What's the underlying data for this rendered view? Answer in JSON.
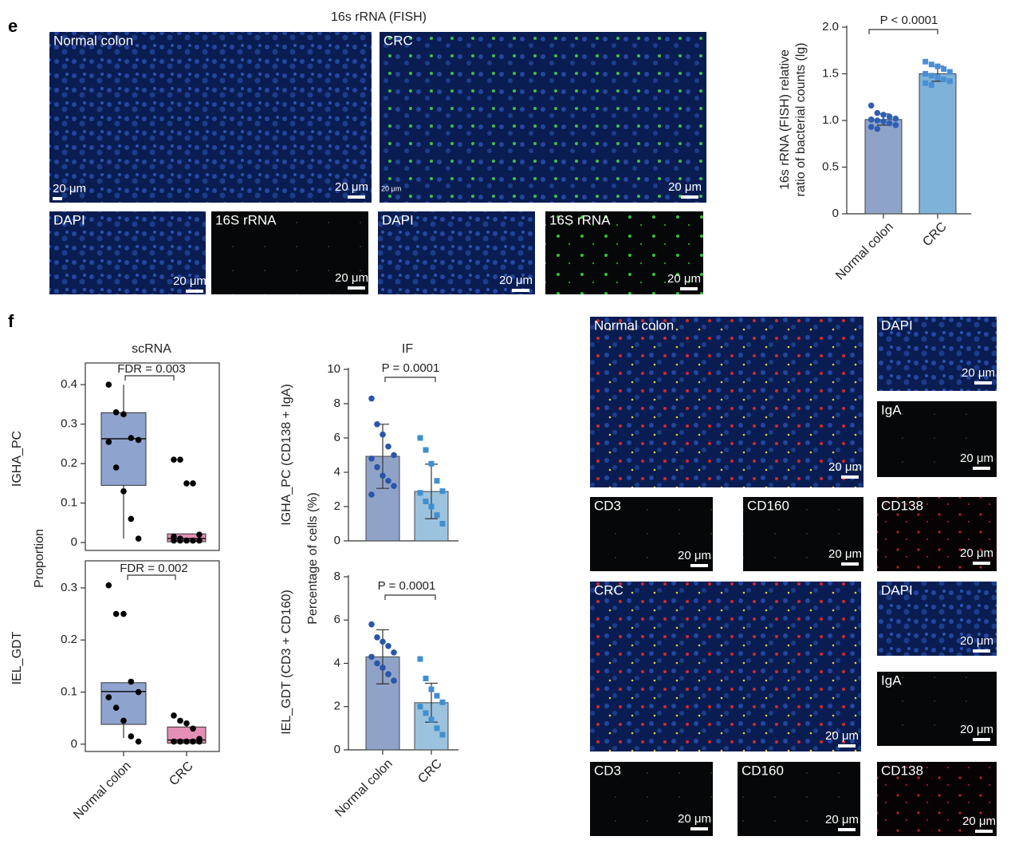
{
  "panel_labels": [
    "e",
    "f"
  ],
  "fish_title": "16s rRNA (FISH)",
  "images": [
    {
      "label": "Normal colon",
      "scales": [
        "20 μm",
        "20 μm"
      ]
    },
    {
      "label": "CRC",
      "scales": [
        "20 μm",
        "20 μm"
      ]
    },
    {
      "label": "DAPI",
      "scales": [
        "20 μm"
      ]
    },
    {
      "label": "16S rRNA",
      "scales": [
        "20 μm"
      ]
    },
    {
      "label": "DAPI",
      "scales": [
        "20 μm"
      ]
    },
    {
      "label": "16S rRNA",
      "scales": [
        "20 μm"
      ]
    },
    {
      "label": "Normal colon",
      "scales": [
        "20 μm"
      ]
    },
    {
      "label": "DAPI",
      "scales": [
        "20 μm"
      ]
    },
    {
      "label": "IgA",
      "scales": [
        "20 μm"
      ]
    },
    {
      "label": "CD3",
      "scales": [
        "20 μm"
      ]
    },
    {
      "label": "CD160",
      "scales": [
        "20 μm"
      ]
    },
    {
      "label": "CD138",
      "scales": [
        "20 μm"
      ]
    },
    {
      "label": "CRC",
      "scales": [
        "20 μm"
      ]
    },
    {
      "label": "DAPI",
      "scales": [
        "20 μm"
      ]
    },
    {
      "label": "IgA",
      "scales": [
        "20 μm"
      ]
    },
    {
      "label": "CD3",
      "scales": [
        "20 μm"
      ]
    },
    {
      "label": "CD160",
      "scales": [
        "20 μm"
      ]
    },
    {
      "label": "CD138",
      "scales": [
        "20 μm"
      ]
    }
  ],
  "chart_data": [
    {
      "type": "bar",
      "ylabel": [
        "16s rRNA (FISH) relative",
        "ratio of bacterial counts (lg)"
      ],
      "categories": [
        "Normal colon",
        "CRC"
      ],
      "values": [
        1.01,
        1.5
      ],
      "errors": [
        0.06,
        0.08
      ],
      "colors": [
        "#8fa3c8",
        "#7fb2d9"
      ],
      "point_colors": [
        "#2f5fb3",
        "#4a8fd6"
      ],
      "point_shapes": [
        "circle",
        "square"
      ],
      "points": [
        [
          1.16,
          1.08,
          1.06,
          1.04,
          1.02,
          1.01,
          1.0,
          0.99,
          0.97,
          0.95,
          0.93,
          0.91
        ],
        [
          1.63,
          1.6,
          1.58,
          1.55,
          1.52,
          1.5,
          1.48,
          1.46,
          1.44,
          1.42,
          1.4,
          1.38
        ]
      ],
      "annotation": "P < 0.0001",
      "ylim": [
        0,
        2
      ],
      "yticks": [
        0,
        0.5,
        {
          "value": 1,
          "label": "1.0"
        },
        1.5,
        {
          "value": 2,
          "label": "2.0"
        }
      ]
    },
    {
      "type": "box",
      "title": "scRNA",
      "ylabel": "Proportion",
      "row_label": "IGHA_PC",
      "boxes": [
        {
          "whislo": 0.01,
          "q1": 0.145,
          "med": 0.263,
          "q3": 0.329,
          "whishi": 0.4
        },
        {
          "whislo": 0,
          "q1": 0.002,
          "med": 0.01,
          "q3": 0.022,
          "whishi": 0.022
        }
      ],
      "colors": [
        "#8fa3cf",
        "#e48fb6"
      ],
      "points": [
        [
          0.4,
          0.33,
          0.325,
          0.265,
          0.26,
          0.255,
          0.19,
          0.13,
          0.06,
          0.01
        ],
        [
          0.21,
          0.21,
          0.15,
          0.15,
          0.02,
          0.015,
          0.01,
          0.005,
          0.005,
          0.005,
          0.005,
          0.005
        ]
      ],
      "annotation": "FDR = 0.003",
      "ylim": [
        -0.02,
        0.455
      ],
      "yticks": [
        0,
        0.1,
        0.2,
        0.3,
        0.4
      ]
    },
    {
      "type": "box",
      "row_label": "IEL_GDT",
      "categories": [
        "Normal colon",
        "CRC"
      ],
      "boxes": [
        {
          "whislo": 0.012,
          "q1": 0.038,
          "med": 0.101,
          "q3": 0.118,
          "whishi": 0.118
        },
        {
          "whislo": 0,
          "q1": 0.002,
          "med": 0.008,
          "q3": 0.033,
          "whishi": 0.035
        }
      ],
      "colors": [
        "#8fa3cf",
        "#e48fb6"
      ],
      "points": [
        [
          0.305,
          0.25,
          0.25,
          0.12,
          0.1,
          0.09,
          0.07,
          0.045,
          0.015,
          0.005
        ],
        [
          0.055,
          0.045,
          0.04,
          0.03,
          0.01,
          0.005,
          0.005,
          0.005,
          0.005,
          0.005
        ]
      ],
      "annotation": "FDR = 0.002",
      "ylim": [
        -0.014,
        0.352
      ],
      "yticks": [
        0,
        0.1,
        0.2,
        0.3
      ]
    },
    {
      "type": "bar",
      "title": "IF",
      "ylabel": "Percentage of cells (%)",
      "row_label": "IGHA_PC (CD138 + IgA)",
      "values": [
        4.93,
        2.88
      ],
      "errors": [
        1.87,
        1.59
      ],
      "colors": [
        "#8fa3c8",
        "#9cc3de"
      ],
      "point_colors": [
        "#2a55a8",
        "#3f8fd0"
      ],
      "point_shapes": [
        "circle",
        "square"
      ],
      "points": [
        [
          8.3,
          6.8,
          6.2,
          5.5,
          5.0,
          4.8,
          4.3,
          3.8,
          3.5,
          3.2,
          2.7
        ],
        [
          6.0,
          5.3,
          4.5,
          3.5,
          2.9,
          2.8,
          2.3,
          2.0,
          1.5,
          1.0
        ]
      ],
      "annotation": "P = 0.0001",
      "ylim": [
        0,
        10
      ],
      "yticks": [
        0,
        2,
        4,
        6,
        8,
        10
      ]
    },
    {
      "type": "bar",
      "row_label": "IEL_GDT (CD3 + CD160)",
      "categories": [
        "Normal colon",
        "CRC"
      ],
      "values": [
        4.3,
        2.18
      ],
      "errors": [
        1.25,
        0.9
      ],
      "colors": [
        "#8fa3c8",
        "#9cc3de"
      ],
      "point_colors": [
        "#2a55a8",
        "#3f8fd0"
      ],
      "point_shapes": [
        "circle",
        "square"
      ],
      "points": [
        [
          5.8,
          5.2,
          5.0,
          4.8,
          4.5,
          4.3,
          4.0,
          3.8,
          3.5,
          3.2
        ],
        [
          4.2,
          3.3,
          2.8,
          2.5,
          2.2,
          2.0,
          1.7,
          1.4,
          1.0,
          0.7
        ]
      ],
      "annotation": "P = 0.0001",
      "ylim": [
        0,
        8
      ],
      "yticks": [
        0,
        2,
        4,
        6,
        8
      ]
    }
  ]
}
